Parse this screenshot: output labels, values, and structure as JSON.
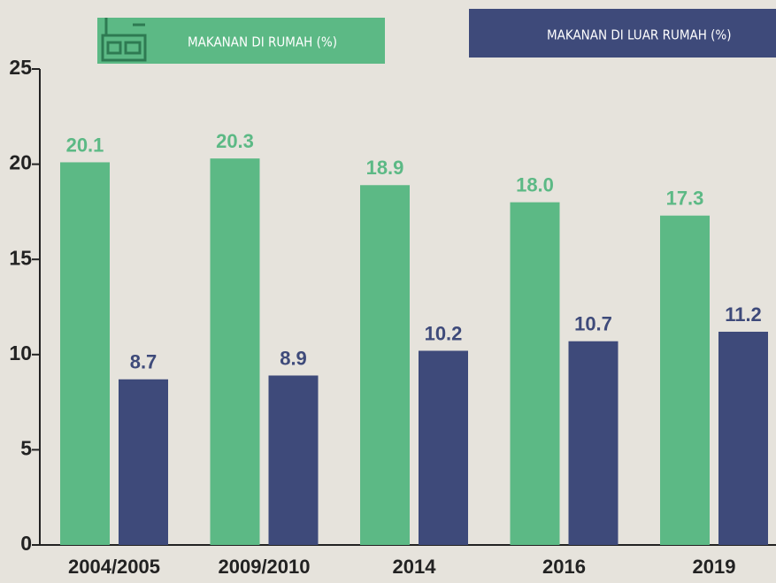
{
  "chart_data": {
    "type": "bar",
    "categories": [
      "2004/2005",
      "2009/2010",
      "2014",
      "2016",
      "2019"
    ],
    "series": [
      {
        "name": "MAKANAN DI RUMAH (%)",
        "color": "#5cb985",
        "values": [
          20.1,
          20.3,
          18.9,
          18.0,
          17.3
        ],
        "value_labels": [
          "20.1",
          "20.3",
          "18.9",
          "18.0",
          "17.3"
        ]
      },
      {
        "name": "MAKANAN DI LUAR RUMAH (%)",
        "color": "#3e4a7a",
        "values": [
          8.7,
          8.9,
          10.2,
          10.7,
          11.2
        ],
        "value_labels": [
          "8.7",
          "8.9",
          "10.2",
          "10.7",
          "11.2"
        ]
      }
    ],
    "ylim": [
      0,
      25
    ],
    "yticks": [
      0,
      5,
      10,
      15,
      20,
      25
    ],
    "grid": false
  }
}
